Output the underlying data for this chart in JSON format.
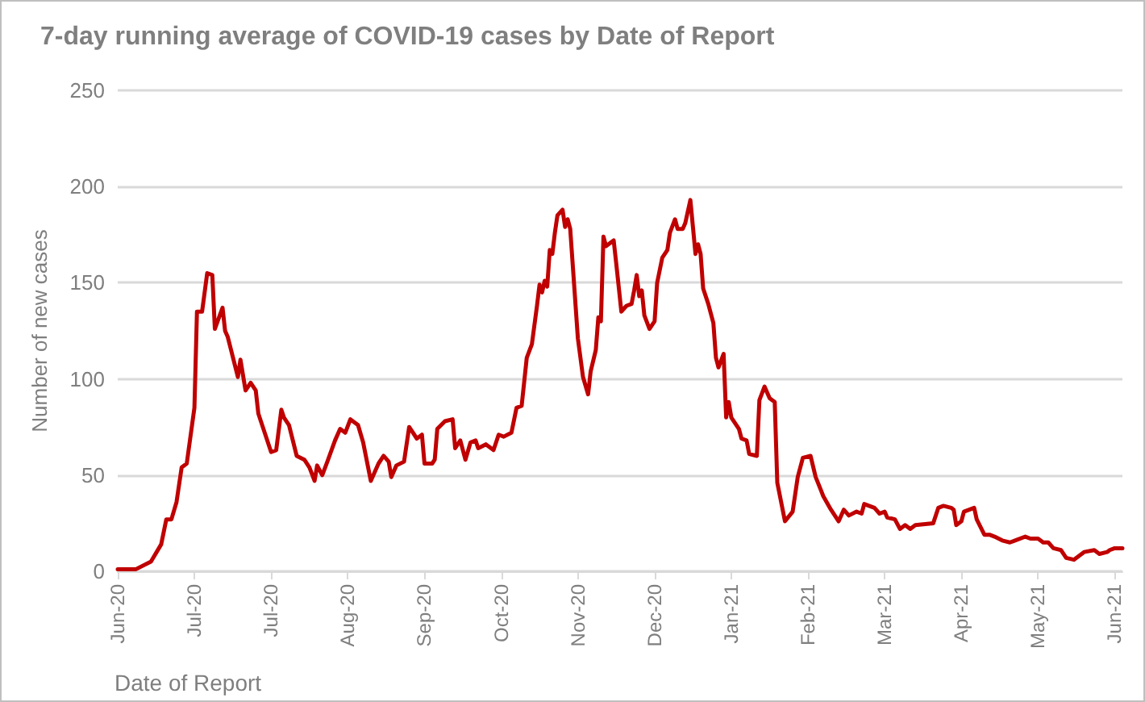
{
  "chart_data": {
    "type": "line",
    "title": "7-day running average of COVID-19 cases by Date of Report",
    "xlabel": "Date of Report",
    "ylabel": "Number of new cases",
    "x": [
      "2020-06-01",
      "2020-06-08",
      "2020-06-14",
      "2020-06-18",
      "2020-06-20",
      "2020-06-22",
      "2020-06-24",
      "2020-06-26",
      "2020-06-28",
      "2020-07-01",
      "2020-07-02",
      "2020-07-04",
      "2020-07-06",
      "2020-07-08",
      "2020-07-09",
      "2020-07-12",
      "2020-07-13",
      "2020-07-14",
      "2020-07-18",
      "2020-07-19",
      "2020-07-21",
      "2020-07-23",
      "2020-07-25",
      "2020-07-26",
      "2020-07-31",
      "2020-08-02",
      "2020-08-04",
      "2020-08-05",
      "2020-08-07",
      "2020-08-10",
      "2020-08-13",
      "2020-08-15",
      "2020-08-17",
      "2020-08-18",
      "2020-08-20",
      "2020-08-22",
      "2020-08-25",
      "2020-08-27",
      "2020-08-29",
      "2020-08-31",
      "2020-09-03",
      "2020-09-05",
      "2020-09-08",
      "2020-09-11",
      "2020-09-13",
      "2020-09-15",
      "2020-09-16",
      "2020-09-18",
      "2020-09-21",
      "2020-09-23",
      "2020-09-26",
      "2020-09-28",
      "2020-09-29",
      "2020-10-02",
      "2020-10-03",
      "2020-10-04",
      "2020-10-07",
      "2020-10-10",
      "2020-10-11",
      "2020-10-13",
      "2020-10-15",
      "2020-10-17",
      "2020-10-19",
      "2020-10-20",
      "2020-10-23",
      "2020-10-26",
      "2020-10-28",
      "2020-10-30",
      "2020-11-02",
      "2020-11-04",
      "2020-11-06",
      "2020-11-08",
      "2020-11-10",
      "2020-11-12",
      "2020-11-13",
      "2020-11-14",
      "2020-11-15",
      "2020-11-16",
      "2020-11-17",
      "2020-11-18",
      "2020-11-19",
      "2020-11-20",
      "2020-11-22",
      "2020-11-23",
      "2020-11-24",
      "2020-11-25",
      "2020-11-28",
      "2020-11-30",
      "2020-12-02",
      "2020-12-03",
      "2020-12-05",
      "2020-12-06",
      "2020-12-07",
      "2020-12-08",
      "2020-12-09",
      "2020-12-11",
      "2020-12-12",
      "2020-12-13",
      "2020-12-15",
      "2020-12-17",
      "2020-12-19",
      "2020-12-20",
      "2020-12-21",
      "2020-12-22",
      "2020-12-23",
      "2020-12-24",
      "2020-12-26",
      "2020-12-28",
      "2020-12-29",
      "2020-12-31",
      "2021-01-02",
      "2021-01-03",
      "2021-01-05",
      "2021-01-06",
      "2021-01-08",
      "2021-01-09",
      "2021-01-11",
      "2021-01-12",
      "2021-01-13",
      "2021-01-14",
      "2021-01-15",
      "2021-01-16",
      "2021-01-18",
      "2021-01-20",
      "2021-01-21",
      "2021-01-22",
      "2021-01-24",
      "2021-01-25",
      "2021-01-26",
      "2021-01-27",
      "2021-01-30",
      "2021-01-31",
      "2021-02-02",
      "2021-02-03",
      "2021-02-06",
      "2021-02-07",
      "2021-02-09",
      "2021-02-11",
      "2021-02-13",
      "2021-02-14",
      "2021-02-17",
      "2021-02-20",
      "2021-02-22",
      "2021-02-24",
      "2021-02-27",
      "2021-03-01",
      "2021-03-04",
      "2021-03-07",
      "2021-03-10",
      "2021-03-12",
      "2021-03-14",
      "2021-03-17",
      "2021-03-19",
      "2021-03-20",
      "2021-03-24",
      "2021-03-26",
      "2021-03-28",
      "2021-03-29",
      "2021-04-01",
      "2021-04-03",
      "2021-04-05",
      "2021-04-07",
      "2021-04-09",
      "2021-04-16",
      "2021-04-18",
      "2021-04-20",
      "2021-04-23",
      "2021-04-24",
      "2021-04-25",
      "2021-04-27",
      "2021-04-28",
      "2021-05-02",
      "2021-05-03",
      "2021-05-06",
      "2021-05-08",
      "2021-05-10",
      "2021-05-13",
      "2021-05-16",
      "2021-05-18",
      "2021-05-22",
      "2021-05-24",
      "2021-05-27",
      "2021-05-29",
      "2021-05-31",
      "2021-06-02",
      "2021-06-05",
      "2021-06-07",
      "2021-06-10",
      "2021-06-12",
      "2021-06-14",
      "2021-06-18",
      "2021-06-20",
      "2021-06-23",
      "2021-06-24",
      "2021-06-26",
      "2021-06-29"
    ],
    "values": [
      1,
      1,
      5,
      14,
      27,
      27,
      36,
      54,
      56,
      85,
      135,
      135,
      155,
      154,
      126,
      137,
      125,
      122,
      101,
      110,
      94,
      98,
      94,
      82,
      62,
      63,
      84,
      80,
      76,
      60,
      58,
      54,
      47,
      55,
      50,
      57,
      68,
      74,
      72,
      79,
      76,
      67,
      47,
      56,
      60,
      57,
      49,
      55,
      57,
      75,
      69,
      71,
      56,
      56,
      58,
      74,
      78,
      79,
      64,
      68,
      58,
      67,
      68,
      64,
      66,
      63,
      71,
      70,
      72,
      85,
      86,
      111,
      118,
      138,
      149,
      145,
      151,
      148,
      167,
      165,
      176,
      185,
      188,
      179,
      183,
      178,
      121,
      101,
      92,
      104,
      115,
      132,
      130,
      174,
      169,
      171,
      172,
      160,
      135,
      138,
      139,
      146,
      154,
      143,
      146,
      133,
      126,
      130,
      150,
      163,
      167,
      176,
      183,
      178,
      178,
      181,
      193,
      179,
      165,
      170,
      165,
      147,
      139,
      129,
      111,
      106,
      113,
      80,
      88,
      80,
      74,
      69,
      68,
      61,
      60,
      89,
      96,
      90,
      88,
      46,
      26,
      31,
      49,
      59,
      60,
      49,
      39,
      32,
      26,
      32,
      29,
      31,
      30,
      35,
      33,
      30,
      31,
      28,
      27,
      22,
      24,
      22,
      24,
      25,
      33,
      34,
      33,
      32,
      24,
      26,
      31,
      33,
      27,
      19,
      19,
      18,
      16,
      15,
      16,
      18,
      17,
      17,
      15,
      15,
      12,
      11,
      7,
      6,
      8,
      10,
      11,
      9,
      10,
      11,
      12,
      12
    ],
    "color": "#c00000",
    "line_style": "solid",
    "marker": "none",
    "xlim": [
      "2020-06-01",
      "2021-06-29"
    ],
    "xticks": [
      {
        "value": "2020-06-01",
        "label": "Jun-20"
      },
      {
        "value": "2020-07-01",
        "label": "Jul-20"
      },
      {
        "value": "2020-07-31",
        "label": "Jul-20"
      },
      {
        "value": "2020-08-30",
        "label": "Aug-20"
      },
      {
        "value": "2020-09-29",
        "label": "Sep-20"
      },
      {
        "value": "2020-10-29",
        "label": "Oct-20"
      },
      {
        "value": "2020-11-28",
        "label": "Nov-20"
      },
      {
        "value": "2020-12-28",
        "label": "Dec-20"
      },
      {
        "value": "2021-01-27",
        "label": "Jan-21"
      },
      {
        "value": "2021-02-26",
        "label": "Feb-21"
      },
      {
        "value": "2021-03-28",
        "label": "Mar-21"
      },
      {
        "value": "2021-04-27",
        "label": "Apr-21"
      },
      {
        "value": "2021-05-27",
        "label": "May-21"
      },
      {
        "value": "2021-06-26",
        "label": "Jun-21"
      }
    ],
    "ylim": [
      0,
      250
    ],
    "yticks": [
      0,
      50,
      100,
      150,
      200,
      250
    ],
    "grid": "y"
  }
}
